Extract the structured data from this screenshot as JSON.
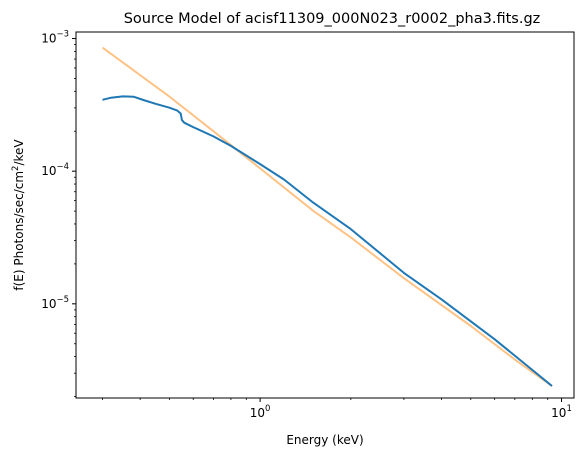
{
  "chart_data": {
    "type": "line",
    "title": "Source Model of acisf11309_000N023_r0002_pha3.fits.gz",
    "xlabel": "Energy (keV)",
    "ylabel_prefix": "f(E)  Photons/sec/cm",
    "ylabel_sup": "2",
    "ylabel_suffix": "/keV",
    "xscale": "log",
    "yscale": "log",
    "xlim": [
      0.245,
      11.0
    ],
    "ylim": [
      1.95e-06,
      0.00112
    ],
    "grid": false,
    "legend": "none",
    "x_ticks": [
      {
        "value": 1,
        "base": "10",
        "exp": "0"
      },
      {
        "value": 10,
        "base": "10",
        "exp": "1"
      }
    ],
    "y_ticks": [
      {
        "value": 1e-05,
        "base": "10",
        "exp": "−5"
      },
      {
        "value": 0.0001,
        "base": "10",
        "exp": "−4"
      },
      {
        "value": 0.001,
        "base": "10",
        "exp": "−3"
      }
    ],
    "series": [
      {
        "color": "#1f77b4",
        "opacity": 1.0,
        "x": [
          0.3,
          0.32,
          0.35,
          0.38,
          0.41,
          0.45,
          0.5,
          0.53,
          0.545,
          0.55,
          0.56,
          0.6,
          0.7,
          0.8,
          1.0,
          1.2,
          1.5,
          2.0,
          3.0,
          4.0,
          6.0,
          9.3
        ],
        "y": [
          0.000345,
          0.000358,
          0.000366,
          0.000364,
          0.000344,
          0.000322,
          0.000301,
          0.000287,
          0.000272,
          0.000243,
          0.000232,
          0.000215,
          0.000183,
          0.000155,
          0.000113,
          8.65e-05,
          5.8e-05,
          3.66e-05,
          1.71e-05,
          1.08e-05,
          5.4e-06,
          2.4e-06
        ]
      },
      {
        "color": "#ffbb78",
        "opacity": 0.9,
        "x": [
          0.3,
          0.4,
          0.5,
          0.7,
          1.0,
          1.5,
          2.0,
          3.0,
          5.0,
          7.0,
          9.3
        ],
        "y": [
          0.000855,
          0.000529,
          0.000365,
          0.0002,
          0.000105,
          5.03e-05,
          3.17e-05,
          1.56e-05,
          6.8e-06,
          3.8e-06,
          2.4e-06
        ]
      }
    ]
  }
}
